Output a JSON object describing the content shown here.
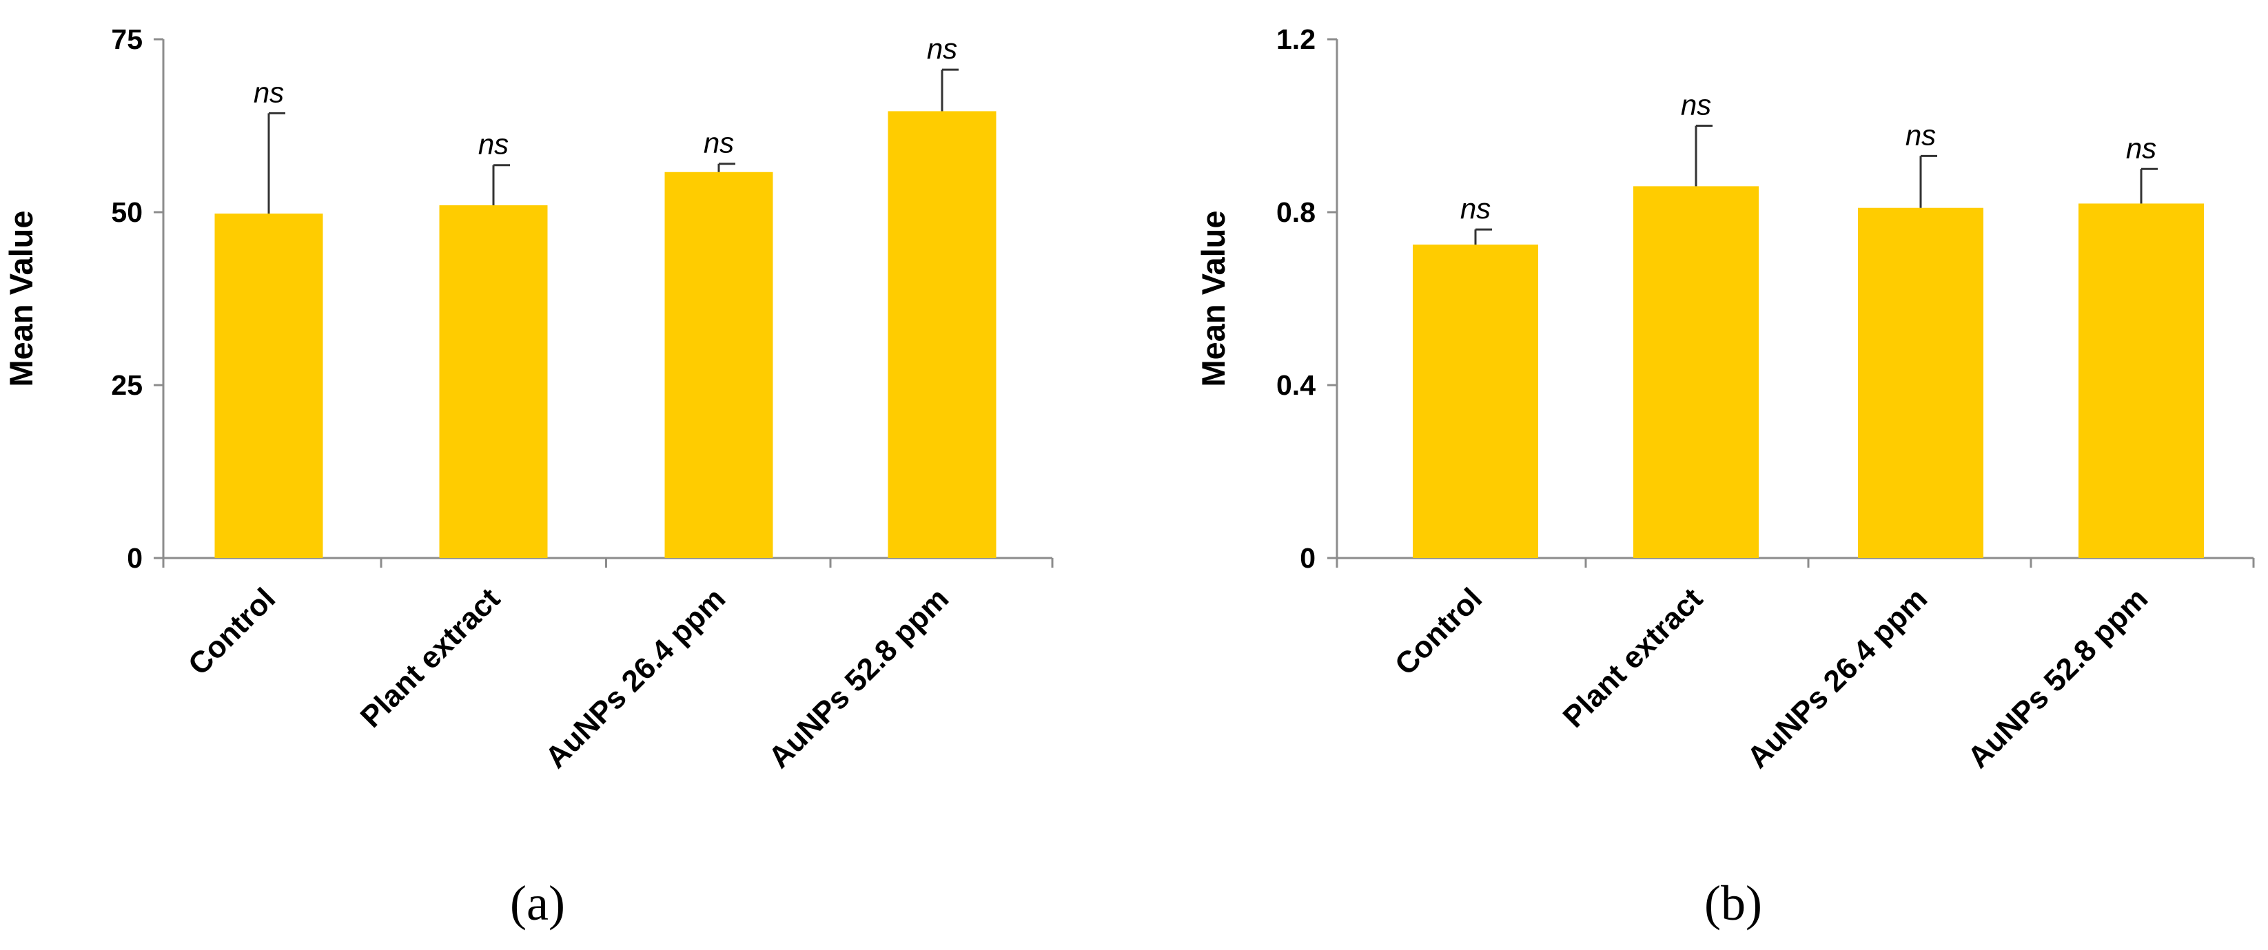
{
  "colors": {
    "bar": "#FFCC00",
    "axis": "#8C8C8C",
    "error_bar": "#333333"
  },
  "chart_data": [
    {
      "type": "bar",
      "panel_label": "(a)",
      "title": "",
      "xlabel": "",
      "ylabel": "Mean Value",
      "categories": [
        "Control",
        "Plant extract",
        "AuNPs 26.4 ppm",
        "AuNPs 52.8 ppm"
      ],
      "values": [
        49.8,
        51.0,
        55.8,
        64.6
      ],
      "errors": [
        14.5,
        5.8,
        1.2,
        6.0
      ],
      "significance": [
        "ns",
        "ns",
        "ns",
        "ns"
      ],
      "ylim": [
        0,
        75
      ],
      "yticks": [
        0,
        25,
        50,
        75
      ],
      "ytick_labels": [
        "0",
        "25",
        "50",
        "75"
      ],
      "grid": false
    },
    {
      "type": "bar",
      "panel_label": "(b)",
      "title": "",
      "xlabel": "",
      "ylabel": "Mean Value",
      "categories": [
        "Control",
        "Plant extract",
        "AuNPs 26.4 ppm",
        "AuNPs 52.8 ppm"
      ],
      "values": [
        0.725,
        0.86,
        0.81,
        0.82
      ],
      "errors": [
        0.035,
        0.14,
        0.12,
        0.08
      ],
      "significance": [
        "ns",
        "ns",
        "ns",
        "ns"
      ],
      "ylim": [
        0,
        1.2
      ],
      "yticks": [
        0,
        0.4,
        0.8,
        1.2
      ],
      "ytick_labels": [
        "0",
        "0.4",
        "0.8",
        "1.2"
      ],
      "grid": false
    }
  ]
}
